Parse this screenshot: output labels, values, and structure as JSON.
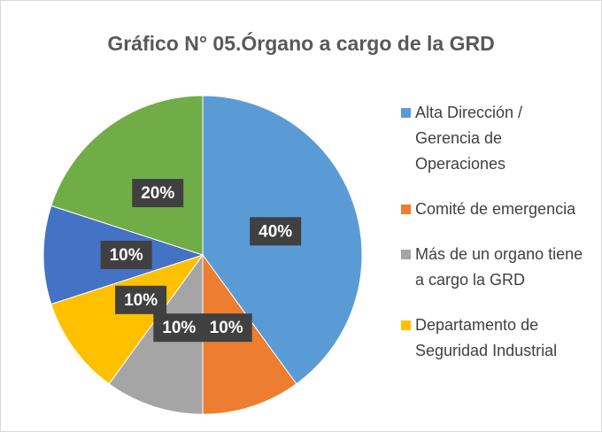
{
  "chart_data": {
    "type": "pie",
    "title": "Gráfico N° 05.Órgano a cargo de la GRD",
    "categories": [
      "Alta Dirección / Gerencia de Operaciones",
      "Comité de emergencia",
      "Más de un organo tiene a cargo la GRD",
      "Departamento de Seguridad Industrial",
      null,
      null
    ],
    "values": [
      40,
      10,
      10,
      10,
      10,
      20
    ],
    "value_labels": [
      "40%",
      "10%",
      "10%",
      "10%",
      "10%",
      "20%"
    ],
    "colors": [
      "#5b9bd5",
      "#ed7d31",
      "#a5a5a5",
      "#ffc000",
      "#4472c4",
      "#70ad47"
    ],
    "legend": "right"
  }
}
